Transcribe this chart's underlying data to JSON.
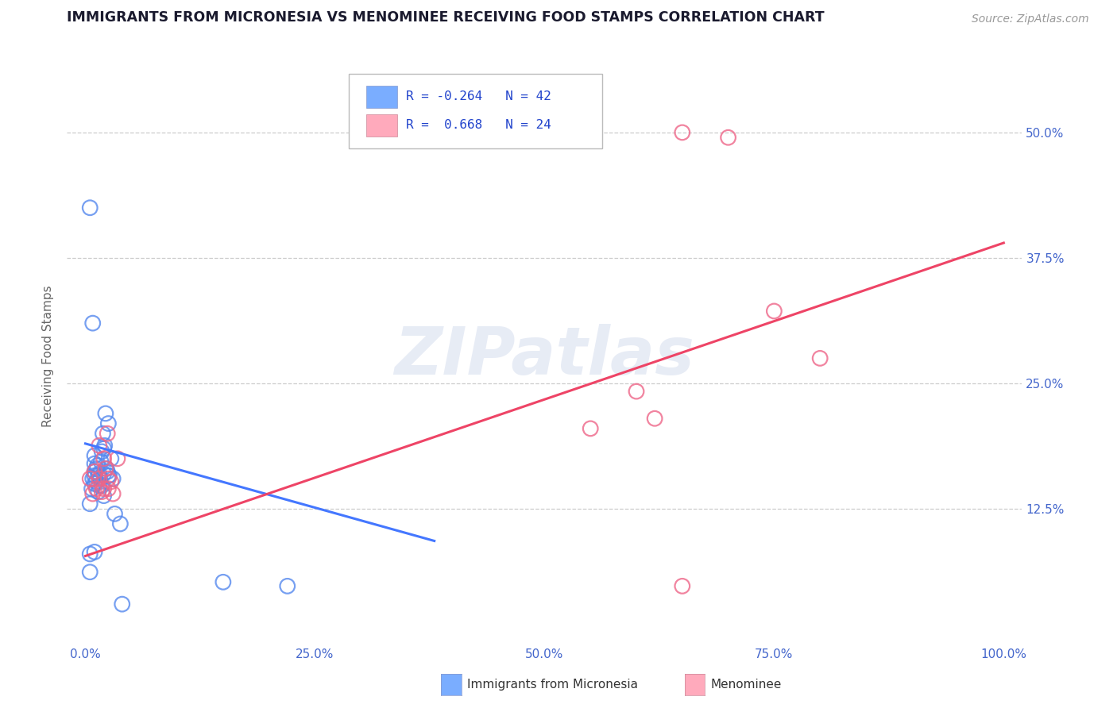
{
  "title": "IMMIGRANTS FROM MICRONESIA VS MENOMINEE RECEIVING FOOD STAMPS CORRELATION CHART",
  "source": "Source: ZipAtlas.com",
  "ylabel": "Receiving Food Stamps",
  "xlim": [
    -0.02,
    1.02
  ],
  "ylim": [
    -0.01,
    0.565
  ],
  "yticks": [
    0.125,
    0.25,
    0.375,
    0.5
  ],
  "ytick_labels": [
    "12.5%",
    "25.0%",
    "37.5%",
    "50.0%"
  ],
  "xticks": [
    0.0,
    0.25,
    0.5,
    0.75,
    1.0
  ],
  "xtick_labels": [
    "0.0%",
    "25.0%",
    "50.0%",
    "75.0%",
    "100.0%"
  ],
  "blue_label": "Immigrants from Micronesia",
  "pink_label": "Menominee",
  "blue_R": "-0.264",
  "blue_N": "42",
  "pink_R": " 0.668",
  "pink_N": "24",
  "blue_color": "#7aadff",
  "pink_color": "#ffaabc",
  "blue_edge": "#5588ee",
  "pink_edge": "#ee6688",
  "blue_line_color": "#4477ff",
  "pink_line_color": "#ee4466",
  "blue_scatter_x": [
    0.005,
    0.005,
    0.007,
    0.008,
    0.01,
    0.01,
    0.01,
    0.01,
    0.01,
    0.012,
    0.012,
    0.013,
    0.014,
    0.014,
    0.015,
    0.015,
    0.016,
    0.017,
    0.018,
    0.018,
    0.019,
    0.02,
    0.02,
    0.02,
    0.021,
    0.022,
    0.023,
    0.024,
    0.025,
    0.025,
    0.026,
    0.028,
    0.03,
    0.032,
    0.038,
    0.04,
    0.005,
    0.01,
    0.15,
    0.22,
    0.005,
    0.008
  ],
  "blue_scatter_y": [
    0.425,
    0.13,
    0.145,
    0.155,
    0.15,
    0.158,
    0.162,
    0.17,
    0.178,
    0.152,
    0.165,
    0.168,
    0.142,
    0.158,
    0.148,
    0.16,
    0.155,
    0.172,
    0.182,
    0.148,
    0.2,
    0.185,
    0.16,
    0.138,
    0.188,
    0.22,
    0.165,
    0.162,
    0.158,
    0.21,
    0.158,
    0.175,
    0.155,
    0.12,
    0.11,
    0.03,
    0.062,
    0.082,
    0.052,
    0.048,
    0.08,
    0.31
  ],
  "pink_scatter_x": [
    0.005,
    0.008,
    0.01,
    0.012,
    0.015,
    0.015,
    0.018,
    0.02,
    0.02,
    0.022,
    0.024,
    0.025,
    0.025,
    0.028,
    0.03,
    0.035,
    0.55,
    0.6,
    0.65,
    0.65,
    0.7,
    0.75,
    0.8,
    0.62
  ],
  "pink_scatter_y": [
    0.155,
    0.14,
    0.162,
    0.145,
    0.155,
    0.188,
    0.142,
    0.175,
    0.145,
    0.165,
    0.2,
    0.145,
    0.155,
    0.152,
    0.14,
    0.175,
    0.205,
    0.242,
    0.048,
    0.5,
    0.495,
    0.322,
    0.275,
    0.215
  ],
  "blue_line_x0": 0.0,
  "blue_line_x1": 0.38,
  "blue_line_y0": 0.19,
  "blue_line_y1": 0.093,
  "pink_line_x0": 0.0,
  "pink_line_x1": 1.0,
  "pink_line_y0": 0.078,
  "pink_line_y1": 0.39,
  "watermark": "ZIPatlas",
  "bg_color": "#ffffff",
  "grid_color": "#cccccc",
  "title_color": "#1a1a2e",
  "tick_color": "#4466cc",
  "ylabel_color": "#666666",
  "legend_text_color": "#2244cc",
  "source_color": "#999999",
  "bottom_label_color": "#333333"
}
